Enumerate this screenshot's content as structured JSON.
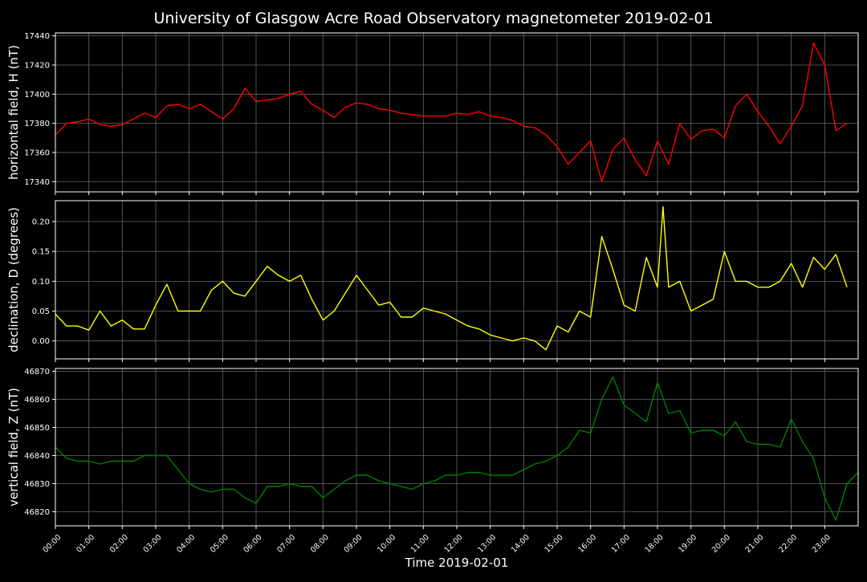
{
  "figure": {
    "title": "University of Glasgow Acre Road Observatory magnetometer 2019-02-01",
    "background": "#000000",
    "grid_color": "#666666",
    "frame_color": "#ffffff",
    "xlabel": "Time 2019-02-01"
  },
  "chart_data": [
    {
      "type": "line",
      "ylabel": "horizontal field, H (nT)",
      "xlim": [
        "00:00",
        "24:00"
      ],
      "ylim": [
        17333,
        17442
      ],
      "yticks": [
        17340,
        17360,
        17380,
        17400,
        17420,
        17440
      ],
      "grid": true,
      "series": [
        {
          "color": "#ff0000",
          "x": [
            "00:00",
            "00:20",
            "00:40",
            "01:00",
            "01:20",
            "01:40",
            "02:00",
            "02:20",
            "02:40",
            "03:00",
            "03:20",
            "03:40",
            "04:00",
            "04:20",
            "04:40",
            "05:00",
            "05:20",
            "05:40",
            "06:00",
            "06:20",
            "06:40",
            "07:00",
            "07:20",
            "07:40",
            "08:00",
            "08:20",
            "08:40",
            "09:00",
            "09:20",
            "09:40",
            "10:00",
            "10:20",
            "10:40",
            "11:00",
            "11:20",
            "11:40",
            "12:00",
            "12:20",
            "12:40",
            "13:00",
            "13:20",
            "13:40",
            "14:00",
            "14:20",
            "14:40",
            "15:00",
            "15:20",
            "15:40",
            "16:00",
            "16:20",
            "16:40",
            "17:00",
            "17:20",
            "17:40",
            "18:00",
            "18:20",
            "18:40",
            "19:00",
            "19:20",
            "19:40",
            "20:00",
            "20:20",
            "20:40",
            "21:00",
            "21:20",
            "21:40",
            "22:00",
            "22:20",
            "22:40",
            "23:00",
            "23:20",
            "23:40"
          ],
          "y": [
            17372,
            17380,
            17381,
            17383,
            17379,
            17378,
            17379,
            17383,
            17387,
            17384,
            17392,
            17393,
            17390,
            17393,
            17388,
            17383,
            17390,
            17404,
            17395,
            17396,
            17397,
            17400,
            17402,
            17393,
            17389,
            17384,
            17391,
            17394,
            17393,
            17390,
            17389,
            17387,
            17386,
            17385,
            17385,
            17385,
            17387,
            17386,
            17388,
            17385,
            17384,
            17382,
            17378,
            17377,
            17372,
            17364,
            17352,
            17360,
            17368,
            17340,
            17362,
            17370,
            17355,
            17344,
            17368,
            17352,
            17380,
            17369,
            17375,
            17376,
            17370,
            17392,
            17400,
            17388,
            17378,
            17366,
            17378,
            17392,
            17435,
            17420,
            17375,
            17380
          ]
        }
      ]
    },
    {
      "type": "line",
      "ylabel": "declination, D (degrees)",
      "xlim": [
        "00:00",
        "24:00"
      ],
      "ylim": [
        -0.03,
        0.235
      ],
      "yticks": [
        0.0,
        0.05,
        0.1,
        0.15,
        0.2
      ],
      "grid": true,
      "series": [
        {
          "color": "#ffff00",
          "x": [
            "00:00",
            "00:20",
            "00:40",
            "01:00",
            "01:20",
            "01:40",
            "02:00",
            "02:20",
            "02:40",
            "03:00",
            "03:20",
            "03:40",
            "04:00",
            "04:20",
            "04:40",
            "05:00",
            "05:20",
            "05:40",
            "06:00",
            "06:20",
            "06:40",
            "07:00",
            "07:20",
            "07:40",
            "08:00",
            "08:20",
            "08:40",
            "09:00",
            "09:20",
            "09:40",
            "10:00",
            "10:20",
            "10:40",
            "11:00",
            "11:20",
            "11:40",
            "12:00",
            "12:20",
            "12:40",
            "13:00",
            "13:20",
            "13:40",
            "14:00",
            "14:20",
            "14:40",
            "15:00",
            "15:20",
            "15:40",
            "16:00",
            "16:20",
            "16:40",
            "17:00",
            "17:20",
            "17:40",
            "18:00",
            "18:10",
            "18:20",
            "18:40",
            "19:00",
            "19:20",
            "19:40",
            "20:00",
            "20:20",
            "20:40",
            "21:00",
            "21:20",
            "21:40",
            "22:00",
            "22:20",
            "22:40",
            "23:00",
            "23:20",
            "23:40"
          ],
          "y": [
            0.045,
            0.025,
            0.025,
            0.018,
            0.05,
            0.025,
            0.035,
            0.02,
            0.02,
            0.06,
            0.095,
            0.05,
            0.05,
            0.05,
            0.085,
            0.1,
            0.08,
            0.075,
            0.1,
            0.125,
            0.11,
            0.1,
            0.11,
            0.07,
            0.035,
            0.05,
            0.08,
            0.11,
            0.085,
            0.06,
            0.065,
            0.04,
            0.04,
            0.055,
            0.05,
            0.045,
            0.035,
            0.025,
            0.02,
            0.01,
            0.005,
            0.0,
            0.005,
            0.0,
            -0.015,
            0.025,
            0.015,
            0.05,
            0.04,
            0.175,
            0.12,
            0.06,
            0.05,
            0.14,
            0.09,
            0.225,
            0.09,
            0.1,
            0.05,
            0.06,
            0.07,
            0.15,
            0.1,
            0.1,
            0.09,
            0.09,
            0.1,
            0.13,
            0.09,
            0.14,
            0.12,
            0.145,
            0.09
          ]
        }
      ]
    },
    {
      "type": "line",
      "ylabel": "vertical field, Z (nT)",
      "xlim": [
        "00:00",
        "24:00"
      ],
      "ylim": [
        46815,
        46871
      ],
      "yticks": [
        46820,
        46830,
        46840,
        46850,
        46860,
        46870
      ],
      "grid": true,
      "series": [
        {
          "color": "#008000",
          "x": [
            "00:00",
            "00:20",
            "00:40",
            "01:00",
            "01:20",
            "01:40",
            "02:00",
            "02:20",
            "02:40",
            "03:00",
            "03:20",
            "03:40",
            "04:00",
            "04:20",
            "04:40",
            "05:00",
            "05:20",
            "05:40",
            "06:00",
            "06:20",
            "06:40",
            "07:00",
            "07:20",
            "07:40",
            "08:00",
            "08:20",
            "08:40",
            "09:00",
            "09:20",
            "09:40",
            "10:00",
            "10:20",
            "10:40",
            "11:00",
            "11:20",
            "11:40",
            "12:00",
            "12:20",
            "12:40",
            "13:00",
            "13:20",
            "13:40",
            "14:00",
            "14:20",
            "14:40",
            "15:00",
            "15:20",
            "15:40",
            "16:00",
            "16:20",
            "16:40",
            "17:00",
            "17:20",
            "17:40",
            "18:00",
            "18:20",
            "18:40",
            "19:00",
            "19:20",
            "19:40",
            "20:00",
            "20:20",
            "20:40",
            "21:00",
            "21:20",
            "21:40",
            "22:00",
            "22:20",
            "22:40",
            "23:00",
            "23:20",
            "23:40",
            "24:00"
          ],
          "y": [
            46843,
            46839,
            46838,
            46838,
            46837,
            46838,
            46838,
            46838,
            46840,
            46840,
            46840,
            46835,
            46830,
            46828,
            46827,
            46828,
            46828,
            46825,
            46823,
            46829,
            46829,
            46830,
            46829,
            46829,
            46825,
            46828,
            46831,
            46833,
            46833,
            46831,
            46830,
            46829,
            46828,
            46830,
            46831,
            46833,
            46833,
            46834,
            46834,
            46833,
            46833,
            46833,
            46835,
            46837,
            46838,
            46840,
            46843,
            46849,
            46848,
            46860,
            46868,
            46858,
            46855,
            46852,
            46866,
            46855,
            46856,
            46848,
            46849,
            46849,
            46847,
            46852,
            46845,
            46844,
            46844,
            46843,
            46853,
            46845,
            46839,
            46825,
            46817,
            46830,
            46834
          ]
        }
      ]
    }
  ],
  "xticks": [
    "00:00",
    "01:00",
    "02:00",
    "03:00",
    "04:00",
    "05:00",
    "06:00",
    "07:00",
    "08:00",
    "09:00",
    "10:00",
    "11:00",
    "12:00",
    "13:00",
    "14:00",
    "15:00",
    "16:00",
    "17:00",
    "18:00",
    "19:00",
    "20:00",
    "21:00",
    "22:00",
    "23:00"
  ]
}
